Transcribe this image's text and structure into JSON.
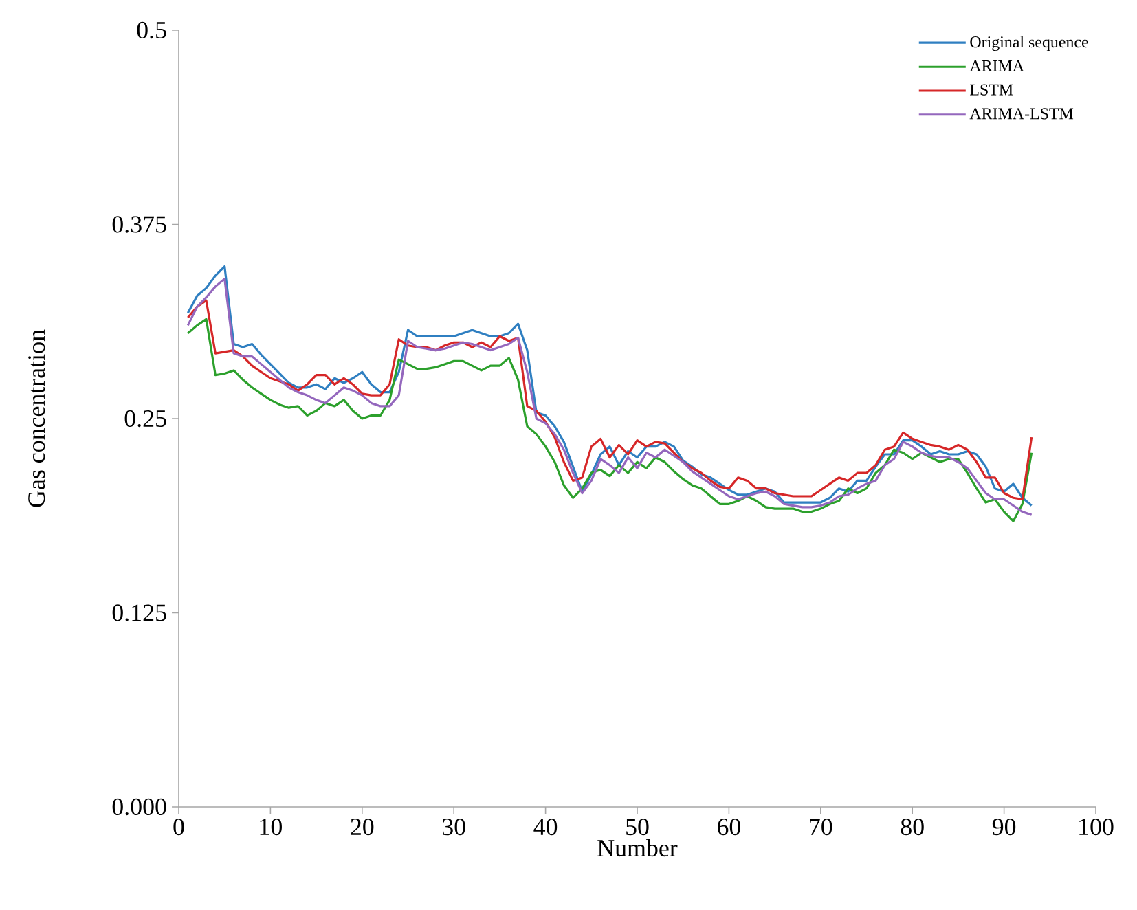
{
  "chart_data": {
    "type": "line",
    "xlabel": "Number",
    "ylabel": "Gas concentration",
    "xlim": [
      0,
      100
    ],
    "xticks": [
      0,
      10,
      20,
      30,
      40,
      50,
      60,
      70,
      80,
      90,
      100
    ],
    "ylim": [
      0,
      0.5
    ],
    "yticks": [
      {
        "value": 0,
        "label": "0.000"
      },
      0.125,
      0.25,
      0.375,
      0.5
    ],
    "grid": false,
    "legend": "top right",
    "marker": "none",
    "line_style": "solid",
    "x": [
      1,
      2,
      3,
      4,
      5,
      6,
      7,
      8,
      9,
      10,
      11,
      12,
      13,
      14,
      15,
      16,
      17,
      18,
      19,
      20,
      21,
      22,
      23,
      24,
      25,
      26,
      27,
      28,
      29,
      30,
      31,
      32,
      33,
      34,
      35,
      36,
      37,
      38,
      39,
      40,
      41,
      42,
      43,
      44,
      45,
      46,
      47,
      48,
      49,
      50,
      51,
      52,
      53,
      54,
      55,
      56,
      57,
      58,
      59,
      60,
      61,
      62,
      63,
      64,
      65,
      66,
      67,
      68,
      69,
      70,
      71,
      72,
      73,
      74,
      75,
      76,
      77,
      78,
      79,
      80,
      81,
      82,
      83,
      84,
      85,
      86,
      87,
      88,
      89,
      90,
      91,
      92,
      93
    ],
    "series": [
      {
        "name": "Original sequence",
        "color": "#2f7fc1",
        "values": [
          0.318,
          0.329,
          0.334,
          0.342,
          0.348,
          0.298,
          0.296,
          0.298,
          0.291,
          0.285,
          0.279,
          0.273,
          0.27,
          0.27,
          0.272,
          0.269,
          0.276,
          0.273,
          0.276,
          0.28,
          0.272,
          0.267,
          0.267,
          0.28,
          0.307,
          0.303,
          0.303,
          0.303,
          0.303,
          0.303,
          0.305,
          0.307,
          0.305,
          0.303,
          0.303,
          0.305,
          0.311,
          0.294,
          0.254,
          0.252,
          0.245,
          0.235,
          0.219,
          0.203,
          0.214,
          0.227,
          0.232,
          0.22,
          0.229,
          0.225,
          0.232,
          0.232,
          0.235,
          0.232,
          0.223,
          0.219,
          0.214,
          0.212,
          0.208,
          0.204,
          0.201,
          0.201,
          0.203,
          0.205,
          0.203,
          0.196,
          0.196,
          0.196,
          0.196,
          0.196,
          0.199,
          0.205,
          0.203,
          0.21,
          0.21,
          0.219,
          0.227,
          0.227,
          0.236,
          0.236,
          0.232,
          0.227,
          0.229,
          0.227,
          0.227,
          0.229,
          0.227,
          0.219,
          0.205,
          0.203,
          0.208,
          0.199,
          0.194
        ]
      },
      {
        "name": "ARIMA",
        "color": "#2ca02c",
        "values": [
          0.305,
          0.31,
          0.314,
          0.278,
          0.279,
          0.281,
          0.275,
          0.27,
          0.266,
          0.262,
          0.259,
          0.257,
          0.258,
          0.252,
          0.255,
          0.26,
          0.258,
          0.262,
          0.255,
          0.25,
          0.252,
          0.252,
          0.262,
          0.288,
          0.285,
          0.282,
          0.282,
          0.283,
          0.285,
          0.287,
          0.287,
          0.284,
          0.281,
          0.284,
          0.284,
          0.289,
          0.275,
          0.245,
          0.24,
          0.232,
          0.222,
          0.207,
          0.199,
          0.205,
          0.215,
          0.217,
          0.213,
          0.22,
          0.215,
          0.222,
          0.218,
          0.225,
          0.222,
          0.216,
          0.211,
          0.207,
          0.205,
          0.2,
          0.195,
          0.195,
          0.197,
          0.2,
          0.197,
          0.193,
          0.192,
          0.192,
          0.192,
          0.19,
          0.19,
          0.192,
          0.195,
          0.197,
          0.205,
          0.202,
          0.205,
          0.215,
          0.22,
          0.23,
          0.228,
          0.224,
          0.228,
          0.225,
          0.222,
          0.224,
          0.224,
          0.215,
          0.205,
          0.196,
          0.198,
          0.19,
          0.184,
          0.195,
          0.228
        ]
      },
      {
        "name": "LSTM",
        "color": "#d62728",
        "values": [
          0.315,
          0.322,
          0.326,
          0.292,
          0.293,
          0.294,
          0.29,
          0.284,
          0.28,
          0.276,
          0.274,
          0.272,
          0.268,
          0.272,
          0.278,
          0.278,
          0.272,
          0.276,
          0.272,
          0.266,
          0.265,
          0.265,
          0.272,
          0.301,
          0.297,
          0.296,
          0.296,
          0.294,
          0.297,
          0.299,
          0.299,
          0.296,
          0.299,
          0.296,
          0.303,
          0.3,
          0.302,
          0.258,
          0.255,
          0.248,
          0.238,
          0.222,
          0.21,
          0.212,
          0.232,
          0.237,
          0.225,
          0.233,
          0.227,
          0.236,
          0.232,
          0.235,
          0.234,
          0.228,
          0.222,
          0.218,
          0.215,
          0.21,
          0.206,
          0.205,
          0.212,
          0.21,
          0.205,
          0.205,
          0.202,
          0.201,
          0.2,
          0.2,
          0.2,
          0.204,
          0.208,
          0.212,
          0.21,
          0.215,
          0.215,
          0.22,
          0.23,
          0.232,
          0.241,
          0.237,
          0.235,
          0.233,
          0.232,
          0.23,
          0.233,
          0.23,
          0.222,
          0.212,
          0.212,
          0.202,
          0.199,
          0.198,
          0.238
        ]
      },
      {
        "name": "ARIMA-LSTM",
        "color": "#9467bd",
        "values": [
          0.31,
          0.322,
          0.328,
          0.335,
          0.34,
          0.292,
          0.29,
          0.29,
          0.285,
          0.28,
          0.275,
          0.27,
          0.267,
          0.265,
          0.262,
          0.26,
          0.265,
          0.27,
          0.268,
          0.265,
          0.26,
          0.258,
          0.258,
          0.265,
          0.3,
          0.296,
          0.295,
          0.294,
          0.295,
          0.297,
          0.299,
          0.298,
          0.296,
          0.294,
          0.296,
          0.298,
          0.302,
          0.28,
          0.25,
          0.247,
          0.24,
          0.23,
          0.215,
          0.202,
          0.21,
          0.224,
          0.22,
          0.215,
          0.225,
          0.218,
          0.228,
          0.225,
          0.23,
          0.226,
          0.222,
          0.216,
          0.212,
          0.208,
          0.204,
          0.2,
          0.198,
          0.2,
          0.202,
          0.203,
          0.2,
          0.195,
          0.194,
          0.193,
          0.193,
          0.194,
          0.196,
          0.2,
          0.201,
          0.205,
          0.208,
          0.21,
          0.22,
          0.224,
          0.235,
          0.232,
          0.228,
          0.226,
          0.225,
          0.225,
          0.222,
          0.218,
          0.21,
          0.202,
          0.198,
          0.198,
          0.194,
          0.19,
          0.188
        ]
      }
    ]
  }
}
